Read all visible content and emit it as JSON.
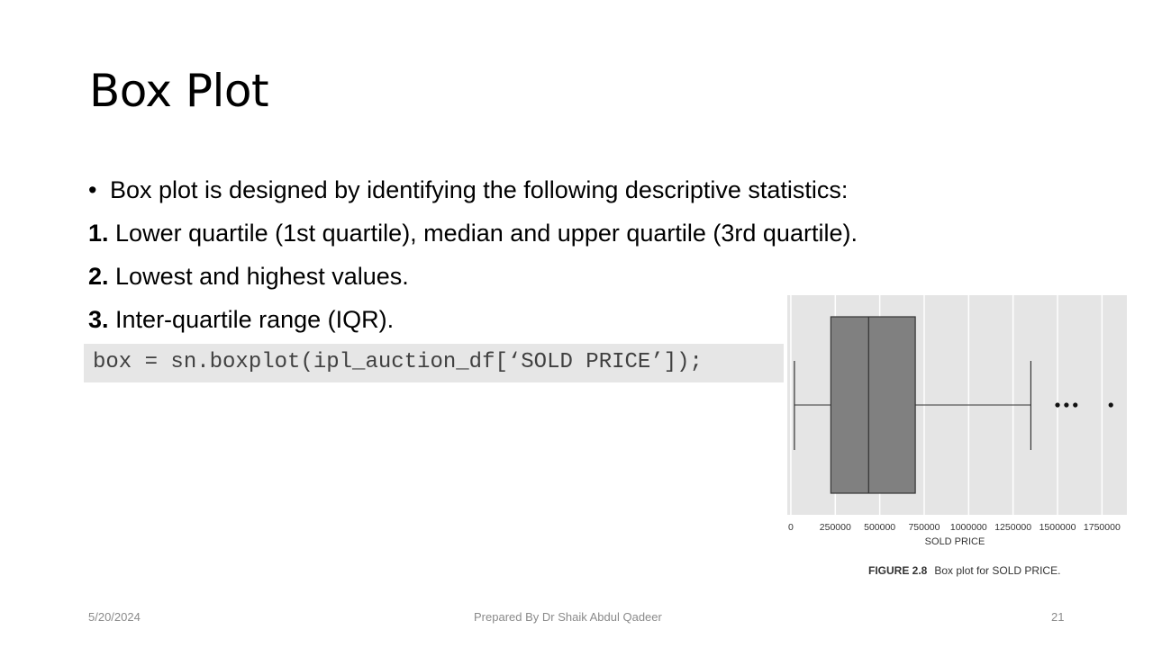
{
  "slide": {
    "title": "Box Plot",
    "bullet": "Box plot is designed by identifying the following descriptive statistics:",
    "items": [
      {
        "num": "1.",
        "text": " Lower quartile (1st quartile), median and upper quartile (3rd quartile)."
      },
      {
        "num": "2.",
        "text": " Lowest and highest values."
      },
      {
        "num": "3.",
        "text": " Inter-quartile range (IQR)."
      }
    ],
    "code": "box = sn.boxplot(ipl_auction_df[‘SOLD PRICE’]);"
  },
  "chart_data": {
    "type": "box",
    "xlabel": "SOLD PRICE",
    "x_ticks": [
      0,
      250000,
      500000,
      750000,
      1000000,
      1250000,
      1500000,
      1750000
    ],
    "x_tick_labels": [
      "0",
      "250000",
      "500000",
      "750000",
      "1000000",
      "1250000",
      "1500000",
      "1750000"
    ],
    "xlim": [
      -20000,
      1890000
    ],
    "box": {
      "min": 20000,
      "q1": 225000,
      "median": 437500,
      "q3": 700000,
      "max": 1350000
    },
    "outliers": [
      1500000,
      1550000,
      1600000,
      1800000
    ],
    "caption_label": "FIGURE 2.8",
    "caption_text": "Box plot for SOLD PRICE.",
    "colors": {
      "background": "#e5e5e5",
      "grid": "#ffffff",
      "box": "#808080",
      "whisker": "#333333"
    }
  },
  "footer": {
    "date": "5/20/2024",
    "author": "Prepared By Dr Shaik Abdul Qadeer",
    "page": "21"
  }
}
